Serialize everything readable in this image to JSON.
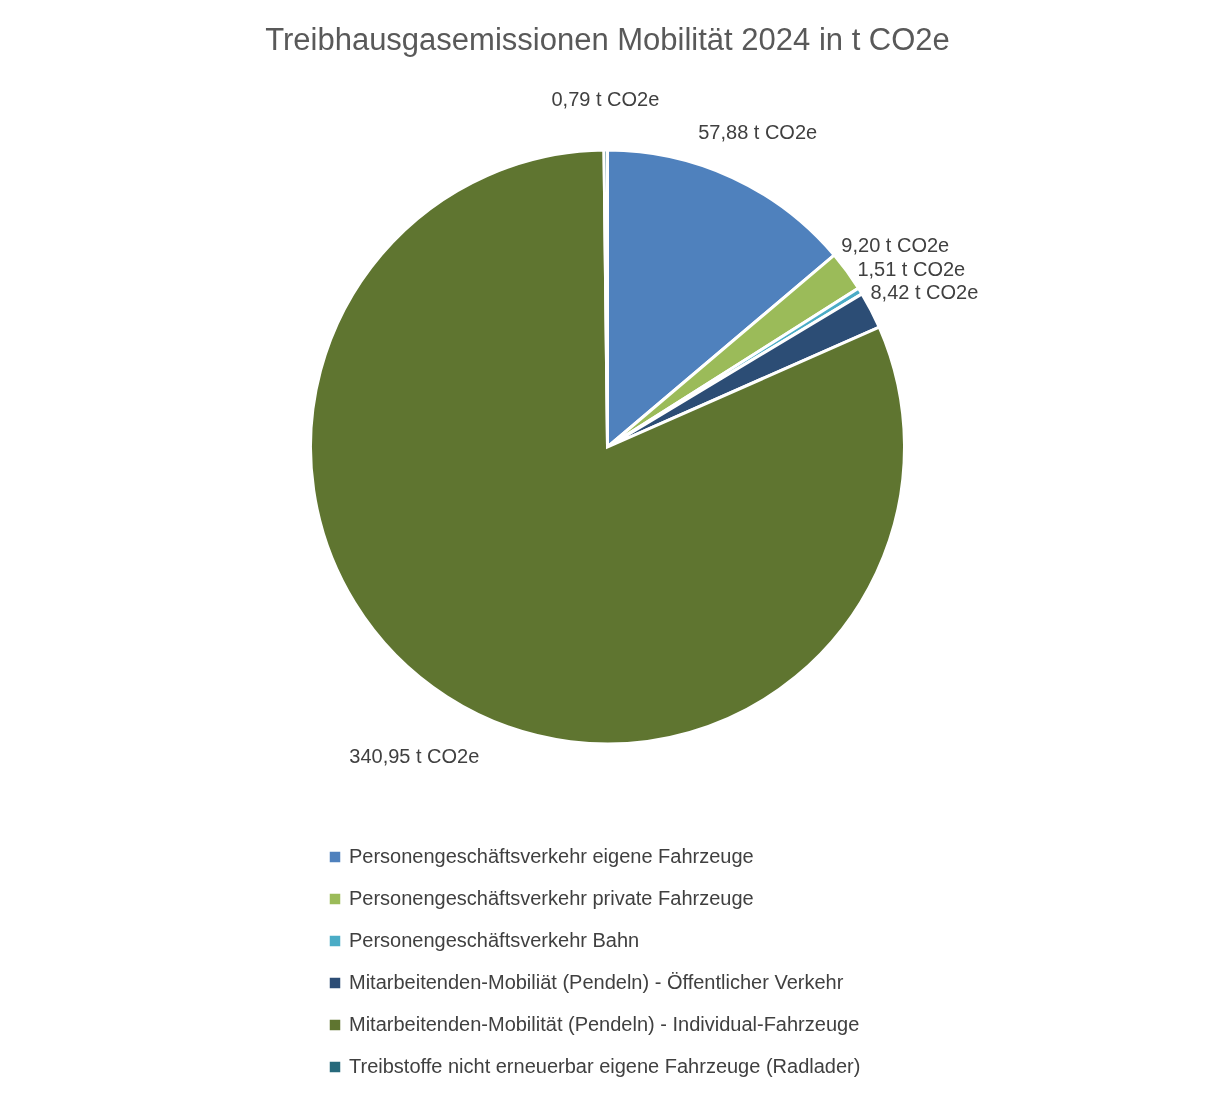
{
  "chart_data": {
    "type": "pie",
    "title": "Treibhausgasemissionen Mobilität 2024 in t CO2e",
    "categories": [
      "Personengeschäftsverkehr eigene Fahrzeuge",
      "Personengeschäftsverkehr private Fahrzeuge",
      "Personengeschäftsverkehr Bahn",
      "Mitarbeitenden-Mobiliät (Pendeln) - Öffentlicher Verkehr",
      "Mitarbeitenden-Mobilität (Pendeln) - Individual-Fahrzeuge",
      "Treibstoffe nicht erneuerbar eigene Fahrzeuge (Radlader)"
    ],
    "values": [
      57.88,
      9.2,
      1.51,
      8.42,
      340.95,
      0.79
    ],
    "value_labels": [
      "57,88 t CO2e",
      "9,20 t CO2e",
      "1,51 t CO2e",
      "8,42 t CO2e",
      "340,95 t CO2e",
      "0,79 t CO2e"
    ],
    "colors": [
      "#4f81bd",
      "#9bbb59",
      "#4bacc6",
      "#2c4d75",
      "#5f7530",
      "#276a7c"
    ],
    "legend": "bottom"
  }
}
